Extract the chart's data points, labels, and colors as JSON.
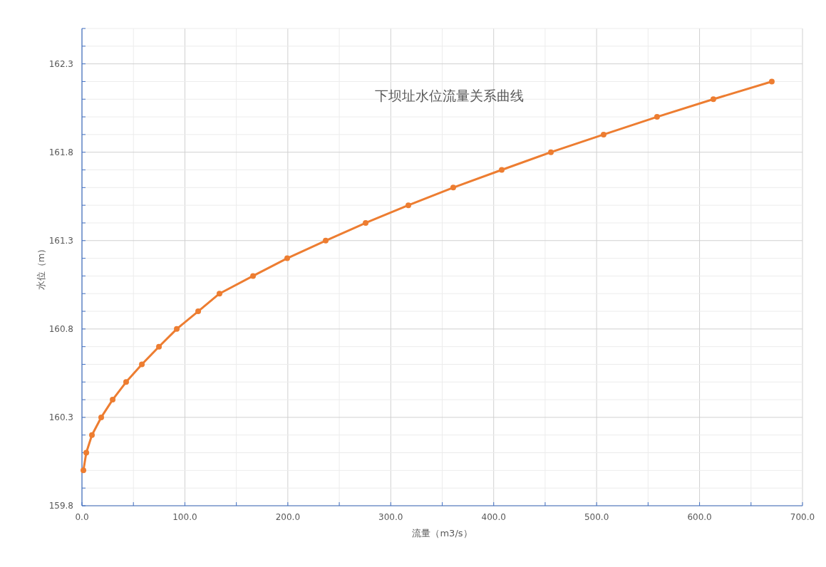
{
  "chart_data": {
    "type": "line",
    "title": "下坝址水位流量关系曲线",
    "xlabel": "流量（m3/s）",
    "ylabel": "水位（m）",
    "x": [
      1.4,
      4.2,
      9.7,
      18.7,
      29.8,
      42.9,
      58.2,
      74.8,
      92.1,
      112.9,
      133.6,
      166.2,
      199.4,
      236.8,
      275.6,
      317.1,
      360.7,
      407.8,
      455.6,
      506.8,
      558.7,
      613.4,
      670.2
    ],
    "series": [
      {
        "color": "#ed7d31",
        "values": [
          160.0,
          160.1,
          160.2,
          160.3,
          160.4,
          160.5,
          160.6,
          160.7,
          160.8,
          160.9,
          161.0,
          161.1,
          161.2,
          161.3,
          161.4,
          161.5,
          161.6,
          161.7,
          161.8,
          161.9,
          162.0,
          162.1,
          162.2
        ]
      }
    ],
    "xlim": [
      0,
      700
    ],
    "ylim": [
      159.8,
      162.5
    ],
    "xticks": [
      {
        "value": 0,
        "label": "0.0"
      },
      {
        "value": 50,
        "label": null
      },
      {
        "value": 100,
        "label": "100.0"
      },
      {
        "value": 150,
        "label": null
      },
      {
        "value": 200,
        "label": "200.0"
      },
      {
        "value": 250,
        "label": null
      },
      {
        "value": 300,
        "label": "300.0"
      },
      {
        "value": 350,
        "label": null
      },
      {
        "value": 400,
        "label": "400.0"
      },
      {
        "value": 450,
        "label": null
      },
      {
        "value": 500,
        "label": "500.0"
      },
      {
        "value": 550,
        "label": null
      },
      {
        "value": 600,
        "label": "600.0"
      },
      {
        "value": 650,
        "label": null
      },
      {
        "value": 700,
        "label": "700.0"
      }
    ],
    "yticks": [
      159.8,
      {
        "value": 159.9,
        "label": null
      },
      {
        "value": 160.0,
        "label": null
      },
      {
        "value": 160.1,
        "label": null
      },
      {
        "value": 160.2,
        "label": null
      },
      160.3,
      {
        "value": 160.4,
        "label": null
      },
      {
        "value": 160.5,
        "label": null
      },
      {
        "value": 160.6,
        "label": null
      },
      {
        "value": 160.7,
        "label": null
      },
      160.8,
      {
        "value": 160.9,
        "label": null
      },
      {
        "value": 161.0,
        "label": null
      },
      {
        "value": 161.1,
        "label": null
      },
      {
        "value": 161.2,
        "label": null
      },
      161.3,
      {
        "value": 161.4,
        "label": null
      },
      {
        "value": 161.5,
        "label": null
      },
      {
        "value": 161.6,
        "label": null
      },
      {
        "value": 161.7,
        "label": null
      },
      161.8,
      {
        "value": 161.9,
        "label": null
      },
      {
        "value": 162.0,
        "label": null
      },
      {
        "value": 162.1,
        "label": null
      },
      {
        "value": 162.2,
        "label": null
      },
      162.3,
      {
        "value": 162.4,
        "label": null
      },
      {
        "value": 162.5,
        "label": null
      }
    ],
    "grid": true,
    "marker": "circle",
    "line_style": "solid"
  }
}
